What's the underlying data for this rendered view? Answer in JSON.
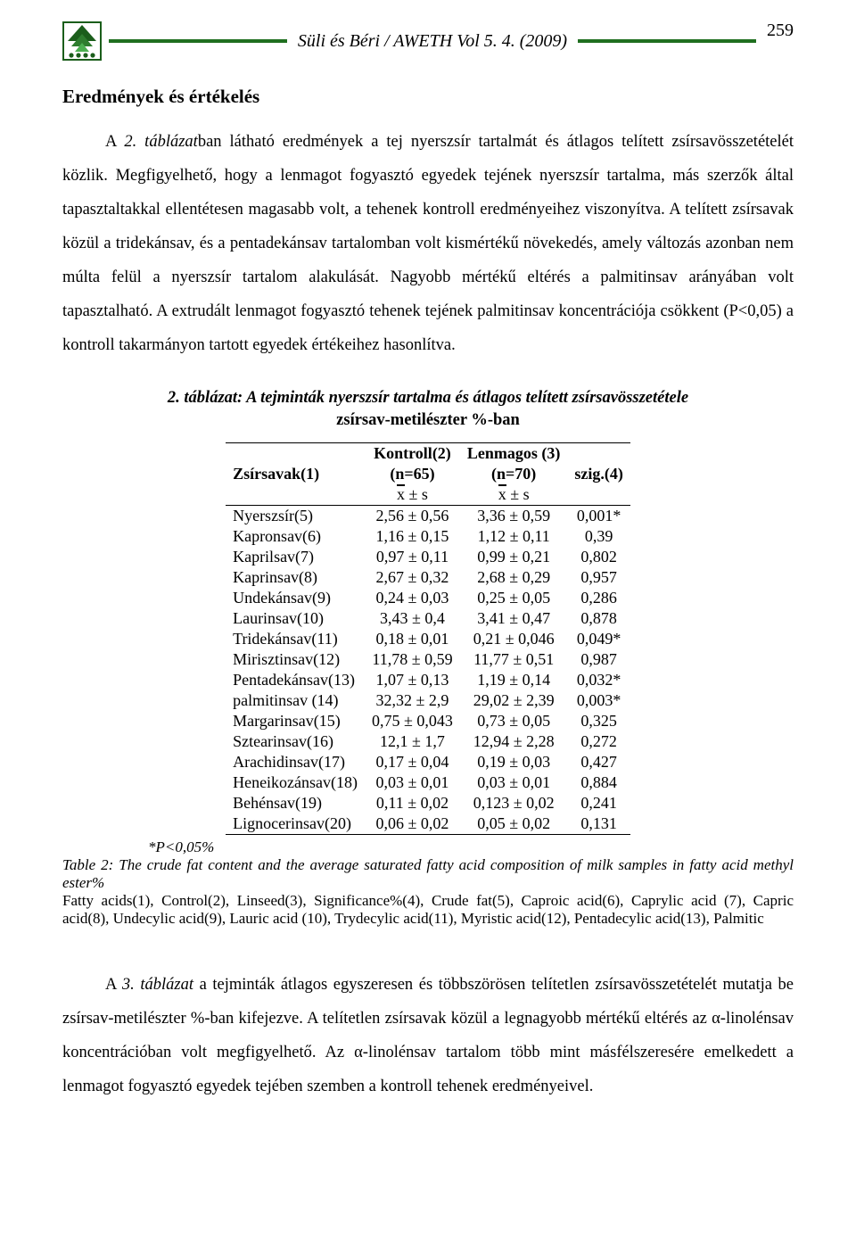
{
  "header": {
    "title": "Süli és Béri / AWETH Vol 5. 4. (2009)",
    "page": "259",
    "logo_bg": "#ffffff",
    "logo_border": "#1b5e1b",
    "rule_color": "#1f6f1f"
  },
  "section_title": "Eredmények és értékelés",
  "para1_pre": "A ",
  "para1_em": "2. táblázat",
  "para1_post": "ban látható eredmények a tej nyerszsír tartalmát és átlagos telített zsírsavösszetételét közlik. Megfigyelhető, hogy a lenmagot fogyasztó egyedek tejének nyerszsír tartalma, más szerzők által tapasztaltakkal ellentétesen magasabb volt, a tehenek kontroll eredményeihez viszonyítva. A telített zsírsavak közül a tridekánsav, és a pentadekánsav tartalomban volt kismértékű növekedés, amely változás azonban nem múlta felül a nyerszsír tartalom alakulását. Nagyobb mértékű eltérés a palmitinsav arányában volt tapasztalható. A extrudált lenmagot fogyasztó tehenek tejének palmitinsav koncentrációja csökkent (P<0,05) a kontroll takarmányon tartott egyedek értékeihez hasonlítva.",
  "table": {
    "caption_pre": "2. táblázat",
    "caption": ": A tejminták nyerszsír tartalma és átlagos telített zsírsavösszetétele",
    "subcaption": "zsírsav-metilészter %-ban",
    "col0": "Zsírsavak(1)",
    "col1a": "Kontroll(2)",
    "col1b": "(n=65)",
    "col2a": "Lenmagos (3)",
    "col2b": "(n=70)",
    "col3": "szig.(4)",
    "xbars": " ± s",
    "rows": [
      {
        "n": "Nyerszsír(5)",
        "a": "2,56 ± 0,56",
        "b": "3,36 ± 0,59",
        "s": "0,001*"
      },
      {
        "n": "Kapronsav(6)",
        "a": "1,16 ± 0,15",
        "b": "1,12 ± 0,11",
        "s": "0,39"
      },
      {
        "n": "Kaprilsav(7)",
        "a": "0,97 ± 0,11",
        "b": "0,99 ± 0,21",
        "s": "0,802"
      },
      {
        "n": "Kaprinsav(8)",
        "a": "2,67 ± 0,32",
        "b": "2,68 ± 0,29",
        "s": "0,957"
      },
      {
        "n": "Undekánsav(9)",
        "a": "0,24 ± 0,03",
        "b": "0,25 ± 0,05",
        "s": "0,286"
      },
      {
        "n": "Laurinsav(10)",
        "a": "3,43 ± 0,4",
        "b": "3,41 ± 0,47",
        "s": "0,878"
      },
      {
        "n": "Tridekánsav(11)",
        "a": "0,18 ± 0,01",
        "b": "0,21 ± 0,046",
        "s": "0,049*"
      },
      {
        "n": "Mirisztinsav(12)",
        "a": "11,78 ± 0,59",
        "b": "11,77 ± 0,51",
        "s": "0,987"
      },
      {
        "n": "Pentadekánsav(13)",
        "a": "1,07 ± 0,13",
        "b": "1,19 ± 0,14",
        "s": "0,032*"
      },
      {
        "n": "palmitinsav (14)",
        "a": "32,32 ± 2,9",
        "b": "29,02 ± 2,39",
        "s": "0,003*"
      },
      {
        "n": "Margarinsav(15)",
        "a": "0,75 ± 0,043",
        "b": "0,73 ± 0,05",
        "s": "0,325"
      },
      {
        "n": "Sztearinsav(16)",
        "a": "12,1 ± 1,7",
        "b": "12,94 ± 2,28",
        "s": "0,272"
      },
      {
        "n": "Arachidinsav(17)",
        "a": "0,17 ± 0,04",
        "b": "0,19 ± 0,03",
        "s": "0,427"
      },
      {
        "n": "Heneikozánsav(18)",
        "a": "0,03 ± 0,01",
        "b": "0,03 ± 0,01",
        "s": "0,884"
      },
      {
        "n": "Behénsav(19)",
        "a": "0,11 ± 0,02",
        "b": "0,123 ± 0,02",
        "s": "0,241"
      },
      {
        "n": "Lignocerinsav(20)",
        "a": "0,06 ± 0,02",
        "b": "0,05 ± 0,02",
        "s": "0,131"
      }
    ],
    "footnote": "*P<0,05%",
    "en_caption": "Table 2: The crude fat content and the average saturated fatty acid composition of milk samples in fatty acid methyl ester%",
    "en_legend": "Fatty acids(1), Control(2), Linseed(3), Significance%(4), Crude fat(5), Caproic acid(6), Caprylic acid (7), Capric acid(8), Undecylic acid(9), Lauric acid (10), Trydecylic acid(11), Myristic acid(12), Pentadecylic acid(13), Palmitic"
  },
  "para2_pre": "A ",
  "para2_em": "3. táblázat",
  "para2_post": " a tejminták átlagos egyszeresen és többszörösen telítetlen zsírsavösszetételét mutatja be zsírsav-metilészter %-ban kifejezve. A telítetlen zsírsavak közül a legnagyobb mértékű eltérés az α-linolénsav koncentrációban volt megfigyelhető. Az α-linolénsav tartalom több mint másfélszeresére emelkedett a lenmagot fogyasztó egyedek tejében szemben a kontroll tehenek eredményeivel."
}
